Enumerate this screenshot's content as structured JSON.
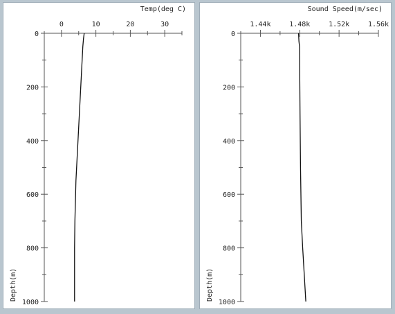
{
  "colors": {
    "background": "#b9c6cf",
    "panel": "#ffffff",
    "axis": "#555555",
    "line": "#111111"
  },
  "chart_data": [
    {
      "type": "line",
      "title": "Temp(deg C)",
      "xlabel": "Temp(deg C)",
      "ylabel": "Depth(m)",
      "x_axis_position": "top",
      "y_inverted": true,
      "xlim": [
        -5,
        35
      ],
      "ylim": [
        0,
        1000
      ],
      "x_ticks": [
        0,
        10,
        20,
        30
      ],
      "x_tick_labels": [
        "0",
        "10",
        "20",
        "30"
      ],
      "y_ticks": [
        0,
        200,
        400,
        600,
        800,
        1000
      ],
      "y_tick_labels": [
        "0",
        "200",
        "400",
        "600",
        "800",
        "1000"
      ],
      "grid": false,
      "series": [
        {
          "x": [
            6.6,
            6.4,
            6.2,
            5.8,
            5.4,
            5.0,
            4.6,
            4.2,
            4.0,
            3.9,
            3.8,
            3.8,
            3.8
          ],
          "y": [
            0,
            20,
            50,
            150,
            250,
            350,
            450,
            550,
            650,
            700,
            800,
            900,
            1000
          ]
        }
      ]
    },
    {
      "type": "line",
      "title": "Sound Speed(m/sec)",
      "xlabel": "Sound Speed(m/sec)",
      "ylabel": "Depth(m)",
      "x_axis_position": "top",
      "y_inverted": true,
      "xlim": [
        1420,
        1560
      ],
      "ylim": [
        0,
        1000
      ],
      "x_ticks": [
        1440,
        1480,
        1520,
        1560
      ],
      "x_tick_labels": [
        "1.44k",
        "1.48k",
        "1.52k",
        "1.56k"
      ],
      "y_ticks": [
        0,
        200,
        400,
        600,
        800,
        1000
      ],
      "y_tick_labels": [
        "0",
        "200",
        "400",
        "600",
        "800",
        "1000"
      ],
      "grid": false,
      "series": [
        {
          "x": [
            1478.8,
            1479.2,
            1479.8,
            1480.0,
            1480.3,
            1480.8,
            1481.6,
            1483.0,
            1484.6,
            1486.2
          ],
          "y": [
            0,
            30,
            50,
            150,
            300,
            500,
            700,
            800,
            900,
            1000
          ]
        }
      ]
    }
  ]
}
